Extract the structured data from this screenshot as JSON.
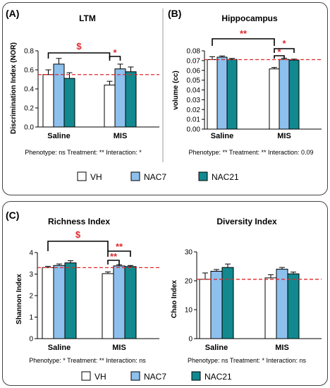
{
  "colors": {
    "VH": "#ffffff",
    "NAC7": "#8dc0ec",
    "NAC21": "#12898f",
    "reference_line": "#e0282b",
    "significance": "#e0282b",
    "axis": "#000000",
    "frame": "#444444"
  },
  "legend": {
    "labels": [
      "VH",
      "NAC7",
      "NAC21"
    ]
  },
  "panels": [
    {
      "id": "A",
      "letter": "(A)",
      "title": "LTM",
      "ylabel": "Discrimination Index (NOR)",
      "stats": "Phenotype: ns  Treatment: **  Interaction: *",
      "brackets": [
        {
          "label": "$",
          "from": [
            0,
            0
          ],
          "to": [
            1,
            0
          ]
        },
        {
          "label": "*",
          "from": [
            1,
            0
          ],
          "to": [
            1,
            1
          ]
        }
      ]
    },
    {
      "id": "B",
      "letter": "(B)",
      "title": "Hippocampus",
      "ylabel": "volume (cc)",
      "stats": "Phenotype: **  Treatment: **  Interaction: 0.09",
      "brackets": [
        {
          "label": "**",
          "from": [
            0,
            0
          ],
          "to": [
            1,
            0
          ]
        },
        {
          "label": "*",
          "from": [
            1,
            0
          ],
          "to": [
            1,
            1
          ]
        },
        {
          "label": "*",
          "from": [
            1,
            0
          ],
          "to": [
            1,
            2
          ]
        }
      ]
    },
    {
      "id": "C",
      "letter": "(C)",
      "title": "Richness Index",
      "ylabel": "Shannon Index",
      "stats": "Phenotype: *  Treatment: **  Interaction: ns",
      "brackets": [
        {
          "label": "$",
          "from": [
            0,
            0
          ],
          "to": [
            1,
            0
          ]
        },
        {
          "label": "**",
          "from": [
            1,
            0
          ],
          "to": [
            1,
            1
          ]
        },
        {
          "label": "**",
          "from": [
            1,
            0
          ],
          "to": [
            1,
            2
          ]
        }
      ]
    },
    {
      "id": "D",
      "letter": "",
      "title": "Diversity Index",
      "ylabel": "Chao Index",
      "stats": "Phenotype: ns  Treatment: *  Interaction: ns",
      "brackets": []
    }
  ],
  "chart_data": [
    {
      "type": "bar",
      "title": "LTM",
      "xlabel": "",
      "ylabel": "Discrimination Index (NOR)",
      "categories": [
        "Saline",
        "MIS"
      ],
      "series": [
        {
          "name": "VH",
          "values": [
            0.55,
            0.44
          ],
          "errors": [
            0.05,
            0.04
          ]
        },
        {
          "name": "NAC7",
          "values": [
            0.66,
            0.61
          ],
          "errors": [
            0.06,
            0.05
          ]
        },
        {
          "name": "NAC21",
          "values": [
            0.51,
            0.58
          ],
          "errors": [
            0.06,
            0.05
          ]
        }
      ],
      "reference_line": 0.55,
      "ylim": [
        0,
        0.8
      ],
      "yticks": [
        "0.0",
        "0.2",
        "0.4",
        "0.6",
        "0.8"
      ],
      "ytick_values": [
        0,
        0.2,
        0.4,
        0.6,
        0.8
      ],
      "grid": false
    },
    {
      "type": "bar",
      "title": "Hippocampus",
      "xlabel": "",
      "ylabel": "volume (cc)",
      "categories": [
        "Saline",
        "MIS"
      ],
      "series": [
        {
          "name": "VH",
          "values": [
            0.071,
            0.0615
          ],
          "errors": [
            0.003,
            0.0015
          ]
        },
        {
          "name": "NAC7",
          "values": [
            0.0735,
            0.0712
          ],
          "errors": [
            0.0012,
            0.0012
          ]
        },
        {
          "name": "NAC21",
          "values": [
            0.0712,
            0.0705
          ],
          "errors": [
            0.001,
            0.001
          ]
        }
      ],
      "reference_line": 0.071,
      "ylim": [
        0,
        0.08
      ],
      "yticks": [
        "0.00",
        "0.01",
        "0.02",
        "0.03",
        "0.04",
        "0.05",
        "0.06",
        "0.07",
        "0.08"
      ],
      "ytick_values": [
        0,
        0.01,
        0.02,
        0.03,
        0.04,
        0.05,
        0.06,
        0.07,
        0.08
      ],
      "grid": false
    },
    {
      "type": "bar",
      "title": "Richness Index",
      "xlabel": "",
      "ylabel": "Shannon Index",
      "categories": [
        "Saline",
        "MIS"
      ],
      "series": [
        {
          "name": "VH",
          "values": [
            3.3,
            3.02
          ],
          "errors": [
            0.06,
            0.08
          ]
        },
        {
          "name": "NAC7",
          "values": [
            3.4,
            3.38
          ],
          "errors": [
            0.07,
            0.05
          ]
        },
        {
          "name": "NAC21",
          "values": [
            3.52,
            3.35
          ],
          "errors": [
            0.1,
            0.05
          ]
        }
      ],
      "reference_line": 3.3,
      "ylim": [
        0,
        4
      ],
      "yticks": [
        "0",
        "1",
        "2",
        "3",
        "4"
      ],
      "ytick_values": [
        0,
        1,
        2,
        3,
        4
      ],
      "grid": false
    },
    {
      "type": "bar",
      "title": "Diversity Index",
      "xlabel": "",
      "ylabel": "Chao Index",
      "categories": [
        "Saline",
        "MIS"
      ],
      "series": [
        {
          "name": "VH",
          "values": [
            20.5,
            21.0
          ],
          "errors": [
            2.2,
            1.1
          ]
        },
        {
          "name": "NAC7",
          "values": [
            23.3,
            24.0
          ],
          "errors": [
            0.6,
            0.6
          ]
        },
        {
          "name": "NAC21",
          "values": [
            24.6,
            22.4
          ],
          "errors": [
            1.2,
            0.6
          ]
        }
      ],
      "reference_line": 20.5,
      "ylim": [
        0,
        30
      ],
      "yticks": [
        "0",
        "10",
        "20",
        "30"
      ],
      "ytick_values": [
        0,
        10,
        20,
        30
      ],
      "grid": false
    }
  ]
}
